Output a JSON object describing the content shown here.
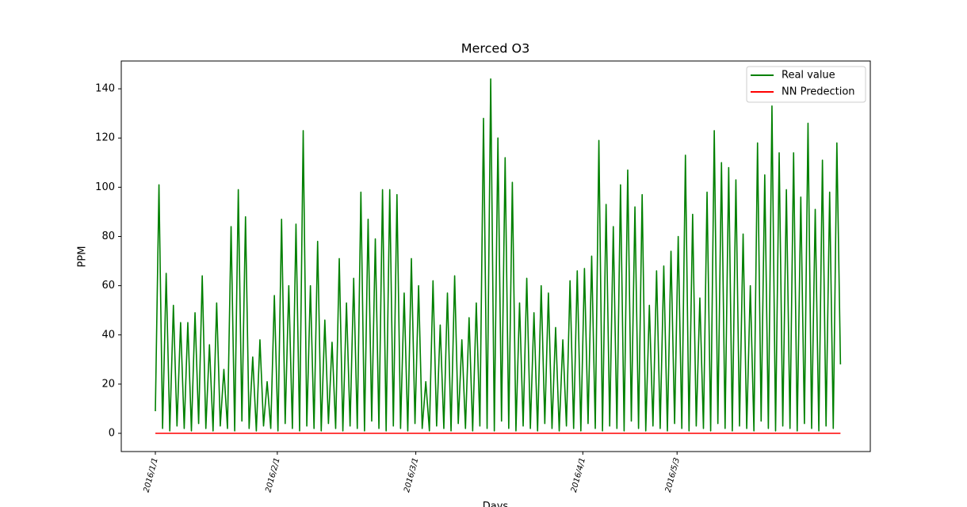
{
  "chart_data": {
    "type": "line",
    "title": "Merced O3",
    "x_label": "Days",
    "y_label": "PPM",
    "xlim": [
      -208,
      4362
    ],
    "ylim": [
      -7.4,
      151.3
    ],
    "xticks": [
      {
        "value": 0,
        "label": "2016/1/1"
      },
      {
        "value": 744,
        "label": "2016/2/1"
      },
      {
        "value": 1589,
        "label": "2016/3/1"
      },
      {
        "value": 2608,
        "label": "2016/4/1"
      },
      {
        "value": 3183,
        "label": "2016/5/3"
      }
    ],
    "yticks": [
      0,
      20,
      40,
      60,
      80,
      100,
      120,
      140
    ],
    "legend": "upper right",
    "series": [
      {
        "name": "Real value",
        "color": "#008000",
        "x": [
          0,
          22,
          44,
          66,
          88,
          110,
          132,
          154,
          176,
          198,
          220,
          242,
          264,
          286,
          308,
          330,
          352,
          374,
          396,
          418,
          440,
          462,
          484,
          506,
          528,
          550,
          572,
          594,
          616,
          638,
          660,
          682,
          704,
          726,
          748,
          770,
          792,
          814,
          836,
          858,
          880,
          902,
          924,
          946,
          968,
          990,
          1012,
          1034,
          1056,
          1078,
          1100,
          1122,
          1144,
          1166,
          1188,
          1210,
          1232,
          1254,
          1276,
          1298,
          1320,
          1342,
          1364,
          1386,
          1408,
          1430,
          1452,
          1474,
          1496,
          1518,
          1540,
          1562,
          1584,
          1606,
          1628,
          1650,
          1672,
          1694,
          1716,
          1738,
          1760,
          1782,
          1804,
          1826,
          1848,
          1870,
          1892,
          1914,
          1936,
          1958,
          1980,
          2002,
          2024,
          2046,
          2068,
          2090,
          2112,
          2134,
          2156,
          2178,
          2200,
          2222,
          2244,
          2266,
          2288,
          2310,
          2332,
          2354,
          2376,
          2398,
          2420,
          2442,
          2464,
          2486,
          2508,
          2530,
          2552,
          2574,
          2596,
          2618,
          2640,
          2662,
          2684,
          2706,
          2728,
          2750,
          2772,
          2794,
          2816,
          2838,
          2860,
          2882,
          2904,
          2926,
          2948,
          2970,
          2992,
          3014,
          3036,
          3058,
          3080,
          3102,
          3124,
          3146,
          3168,
          3190,
          3212,
          3234,
          3256,
          3278,
          3300,
          3322,
          3344,
          3366,
          3388,
          3410,
          3432,
          3454,
          3476,
          3498,
          3520,
          3542,
          3564,
          3586,
          3608,
          3630,
          3652,
          3674,
          3696,
          3718,
          3740,
          3762,
          3784,
          3806,
          3828,
          3850,
          3872,
          3894,
          3916,
          3938,
          3960,
          3982,
          4004,
          4026,
          4048,
          4070,
          4092,
          4114,
          4136,
          4158,
          4180
        ],
        "values": [
          9,
          101,
          2,
          65,
          1,
          52,
          3,
          45,
          2,
          45,
          1,
          49,
          4,
          64,
          2,
          36,
          1,
          53,
          3,
          26,
          2,
          84,
          1,
          99,
          5,
          88,
          2,
          31,
          1,
          38,
          3,
          21,
          2,
          56,
          1,
          87,
          4,
          60,
          2,
          85,
          1,
          123,
          3,
          60,
          2,
          78,
          1,
          46,
          4,
          37,
          2,
          71,
          1,
          53,
          3,
          63,
          2,
          98,
          1,
          87,
          5,
          79,
          2,
          99,
          1,
          99,
          3,
          97,
          2,
          57,
          1,
          71,
          4,
          60,
          2,
          21,
          1,
          62,
          3,
          44,
          2,
          57,
          1,
          64,
          4,
          38,
          2,
          47,
          1,
          53,
          3,
          128,
          2,
          144,
          1,
          120,
          5,
          112,
          2,
          102,
          1,
          53,
          3,
          63,
          2,
          49,
          1,
          60,
          4,
          57,
          2,
          43,
          1,
          38,
          3,
          62,
          2,
          66,
          1,
          67,
          4,
          72,
          2,
          119,
          1,
          93,
          3,
          84,
          2,
          101,
          1,
          107,
          5,
          92,
          2,
          97,
          1,
          52,
          3,
          66,
          2,
          68,
          1,
          74,
          4,
          80,
          2,
          113,
          1,
          89,
          3,
          55,
          2,
          98,
          1,
          123,
          4,
          110,
          2,
          108,
          1,
          103,
          3,
          81,
          2,
          60,
          1,
          118,
          5,
          105,
          2,
          133,
          1,
          114,
          3,
          99,
          2,
          114,
          1,
          96,
          4,
          126,
          2,
          91,
          1,
          111,
          3,
          98,
          2,
          118,
          28
        ]
      },
      {
        "name": "NN Predection",
        "color": "#ff0000",
        "x": [
          0,
          4180
        ],
        "values": [
          0,
          0
        ]
      }
    ]
  }
}
